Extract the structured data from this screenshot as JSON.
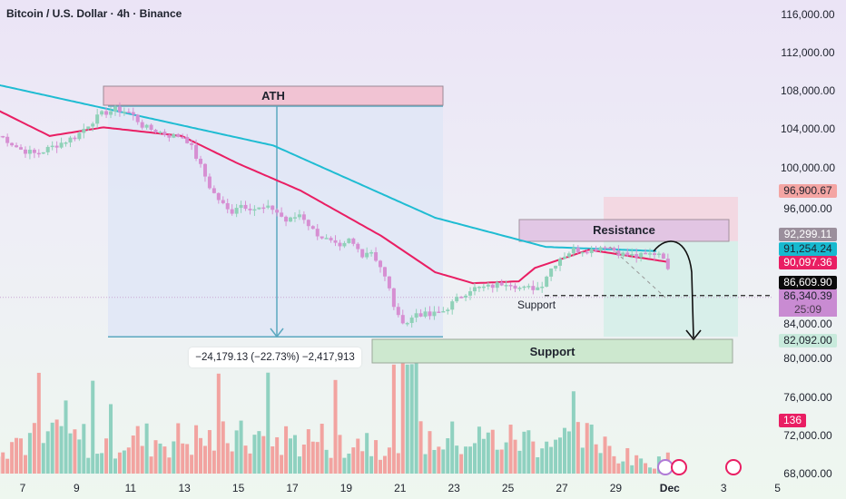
{
  "header": {
    "title": "Bitcoin / U.S. Dollar · 4h · Binance"
  },
  "colors": {
    "up": "#8fd1b8",
    "down": "#d68fd2",
    "ema_fast": "#e91e63",
    "ema_slow": "#1fbcd2",
    "vol_up": "#8fd1c0",
    "vol_down": "#f2a3a0"
  },
  "annotations": {
    "ath": "ATH",
    "resistance": "Resistance",
    "support_zone": "Support",
    "support_small": "Support",
    "measure": "−24,179.13 (−22.73%) −2,417,913"
  },
  "price_labels": [
    {
      "text": "96,900.67",
      "bg": "#f4a5a3",
      "fg": "#1e222d"
    },
    {
      "text": "92,299.11",
      "bg": "#9b8f9c",
      "fg": "#ffffff"
    },
    {
      "text": "91,254.24",
      "bg": "#17b9cf",
      "fg": "#1e222d"
    },
    {
      "text": "90,097.36",
      "bg": "#e91e63",
      "fg": "#ffffff"
    },
    {
      "text": "86,609.90",
      "bg": "#0b0b0b",
      "fg": "#ffffff"
    },
    {
      "text": "86,340.39",
      "bg": "#c98bd2",
      "fg": "#1e222d"
    },
    {
      "text": "25:09",
      "bg": "#c98bd2",
      "fg": "#4a3a4e"
    },
    {
      "text": "82,092.00",
      "bg": "#c8eadc",
      "fg": "#1e222d"
    },
    {
      "text": "136",
      "bg": "#e91e63",
      "fg": "#ffffff"
    }
  ],
  "chart_data": {
    "type": "candlestick",
    "title": "Bitcoin / U.S. Dollar · 4h · Binance",
    "ylim": [
      68000,
      116000
    ],
    "y_ticks": [
      "116,000.00",
      "112,000.00",
      "108,000.00",
      "104,000.00",
      "100,000.00",
      "96,000.00",
      "84,000.00",
      "80,000.00",
      "76,000.00",
      "72,000.00",
      "68,000.00"
    ],
    "y_tick_values": [
      116000,
      112000,
      108000,
      104000,
      100000,
      96000,
      84000,
      80000,
      76000,
      72000,
      68000
    ],
    "x_ticks": [
      "7",
      "9",
      "11",
      "13",
      "15",
      "17",
      "19",
      "21",
      "23",
      "25",
      "27",
      "29",
      "Dec",
      "3",
      "5"
    ],
    "x_tick_days": [
      7,
      9,
      11,
      13,
      15,
      17,
      19,
      21,
      23,
      25,
      27,
      29,
      31,
      33,
      35
    ],
    "close_path": [
      [
        6.2,
        103300
      ],
      [
        6.9,
        101900
      ],
      [
        7.5,
        101400
      ],
      [
        8.2,
        102300
      ],
      [
        9,
        103300
      ],
      [
        9.5,
        104700
      ],
      [
        10,
        105700
      ],
      [
        10.5,
        106100
      ],
      [
        11,
        105700
      ],
      [
        11.5,
        104200
      ],
      [
        12,
        103800
      ],
      [
        12.5,
        103300
      ],
      [
        13,
        103300
      ],
      [
        13.3,
        101900
      ],
      [
        13.7,
        99500
      ],
      [
        14,
        97600
      ],
      [
        14.4,
        96200
      ],
      [
        14.7,
        95200
      ],
      [
        15,
        96200
      ],
      [
        15.6,
        95700
      ],
      [
        16.3,
        95700
      ],
      [
        16.8,
        94300
      ],
      [
        17.3,
        95200
      ],
      [
        17.8,
        93300
      ],
      [
        18.3,
        92400
      ],
      [
        18.8,
        91400
      ],
      [
        19.1,
        92400
      ],
      [
        19.6,
        90950
      ],
      [
        19.9,
        91400
      ],
      [
        20.3,
        89500
      ],
      [
        20.6,
        87200
      ],
      [
        20.9,
        84300
      ],
      [
        21.3,
        83800
      ],
      [
        21.6,
        84800
      ],
      [
        22.1,
        84500
      ],
      [
        22.6,
        85000
      ],
      [
        23.1,
        86200
      ],
      [
        23.6,
        87300
      ],
      [
        24.3,
        87500
      ],
      [
        25,
        88100
      ],
      [
        25.5,
        87300
      ],
      [
        26.2,
        87500
      ],
      [
        26.5,
        89100
      ],
      [
        26.9,
        90500
      ],
      [
        27.4,
        91400
      ],
      [
        28.1,
        91400
      ],
      [
        28.6,
        91900
      ],
      [
        29.2,
        90950
      ],
      [
        29.8,
        90700
      ],
      [
        30.6,
        91100
      ],
      [
        30.9,
        90500
      ],
      [
        31,
        86340
      ]
    ],
    "ema_slow": [
      [
        6,
        108700
      ],
      [
        16.3,
        102300
      ],
      [
        22.3,
        94750
      ],
      [
        26.4,
        91700
      ],
      [
        30.6,
        91254
      ]
    ],
    "ema_fast": [
      [
        6,
        106100
      ],
      [
        8,
        103300
      ],
      [
        10,
        104200
      ],
      [
        12.9,
        103300
      ],
      [
        15,
        100400
      ],
      [
        17.3,
        97600
      ],
      [
        20.3,
        92850
      ],
      [
        22.3,
        89050
      ],
      [
        23.7,
        87900
      ],
      [
        25.4,
        88100
      ],
      [
        26,
        89500
      ],
      [
        28,
        91400
      ],
      [
        31,
        90097
      ]
    ],
    "volume_last": 136,
    "levels": {
      "resistance": [
        92300,
        94400
      ],
      "support": [
        80100,
        82600
      ],
      "ath": 106500,
      "measure_low": 82300,
      "current": 86609.9,
      "target": 82092
    }
  }
}
